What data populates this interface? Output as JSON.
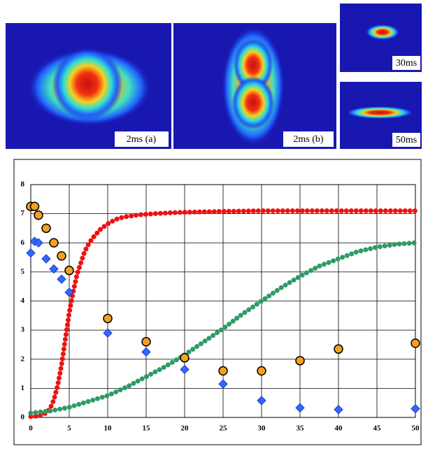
{
  "images": [
    {
      "label": "2ms (a)"
    },
    {
      "label": "2ms (b)"
    },
    {
      "label": "30ms"
    },
    {
      "label": "50ms"
    }
  ],
  "chart_data": {
    "type": "scatter",
    "grid": true,
    "xlim": [
      0,
      50
    ],
    "xticks": [
      0,
      5,
      10,
      15,
      20,
      25,
      30,
      35,
      40,
      45,
      50
    ],
    "ylim": [
      0,
      8
    ],
    "yticks": [
      0,
      1,
      2,
      3,
      4,
      5,
      6,
      7,
      8
    ],
    "series": [
      {
        "color": "#f5a020",
        "marker": "circle",
        "x": [
          0,
          0.5,
          1,
          2,
          3,
          4,
          5,
          10,
          15,
          20,
          25,
          30,
          35,
          40,
          50
        ],
        "values": [
          7.25,
          7.25,
          6.95,
          6.5,
          6.0,
          5.55,
          5.05,
          3.4,
          2.6,
          2.05,
          1.6,
          1.6,
          1.95,
          2.35,
          2.55
        ]
      },
      {
        "color": "#3366ff",
        "marker": "diamond",
        "x": [
          0,
          0.5,
          1,
          2,
          3,
          4,
          5,
          10,
          15,
          20,
          25,
          30,
          35,
          40,
          50
        ],
        "values": [
          5.65,
          6.05,
          6.0,
          5.45,
          5.1,
          4.75,
          4.3,
          2.9,
          2.25,
          1.65,
          1.15,
          0.58,
          0.33,
          0.27,
          0.3
        ]
      },
      {
        "color": "#ee1111",
        "marker": "dots",
        "x": [
          0,
          1,
          2,
          2.5,
          3,
          3.5,
          4,
          4.5,
          5,
          5.5,
          6,
          6.5,
          7,
          7.5,
          8,
          9,
          10,
          11,
          12,
          14,
          16,
          18,
          20,
          25,
          30,
          35,
          40,
          45,
          50
        ],
        "values": [
          0.03,
          0.05,
          0.15,
          0.3,
          0.6,
          1.1,
          1.8,
          2.7,
          3.6,
          4.3,
          4.9,
          5.3,
          5.7,
          5.95,
          6.15,
          6.45,
          6.65,
          6.8,
          6.88,
          6.96,
          7.0,
          7.03,
          7.05,
          7.08,
          7.1,
          7.1,
          7.1,
          7.1,
          7.1
        ]
      },
      {
        "color": "#2e9a66",
        "marker": "dots",
        "x": [
          0,
          2.5,
          5,
          7.5,
          10,
          12.5,
          15,
          17.5,
          20,
          22.5,
          25,
          27.5,
          30,
          32.5,
          35,
          37.5,
          40,
          42.5,
          45,
          47.5,
          50
        ],
        "values": [
          0.15,
          0.22,
          0.35,
          0.55,
          0.75,
          1.05,
          1.4,
          1.75,
          2.15,
          2.6,
          3.05,
          3.55,
          4.0,
          4.45,
          4.85,
          5.2,
          5.45,
          5.7,
          5.85,
          5.95,
          6.0
        ]
      }
    ]
  }
}
